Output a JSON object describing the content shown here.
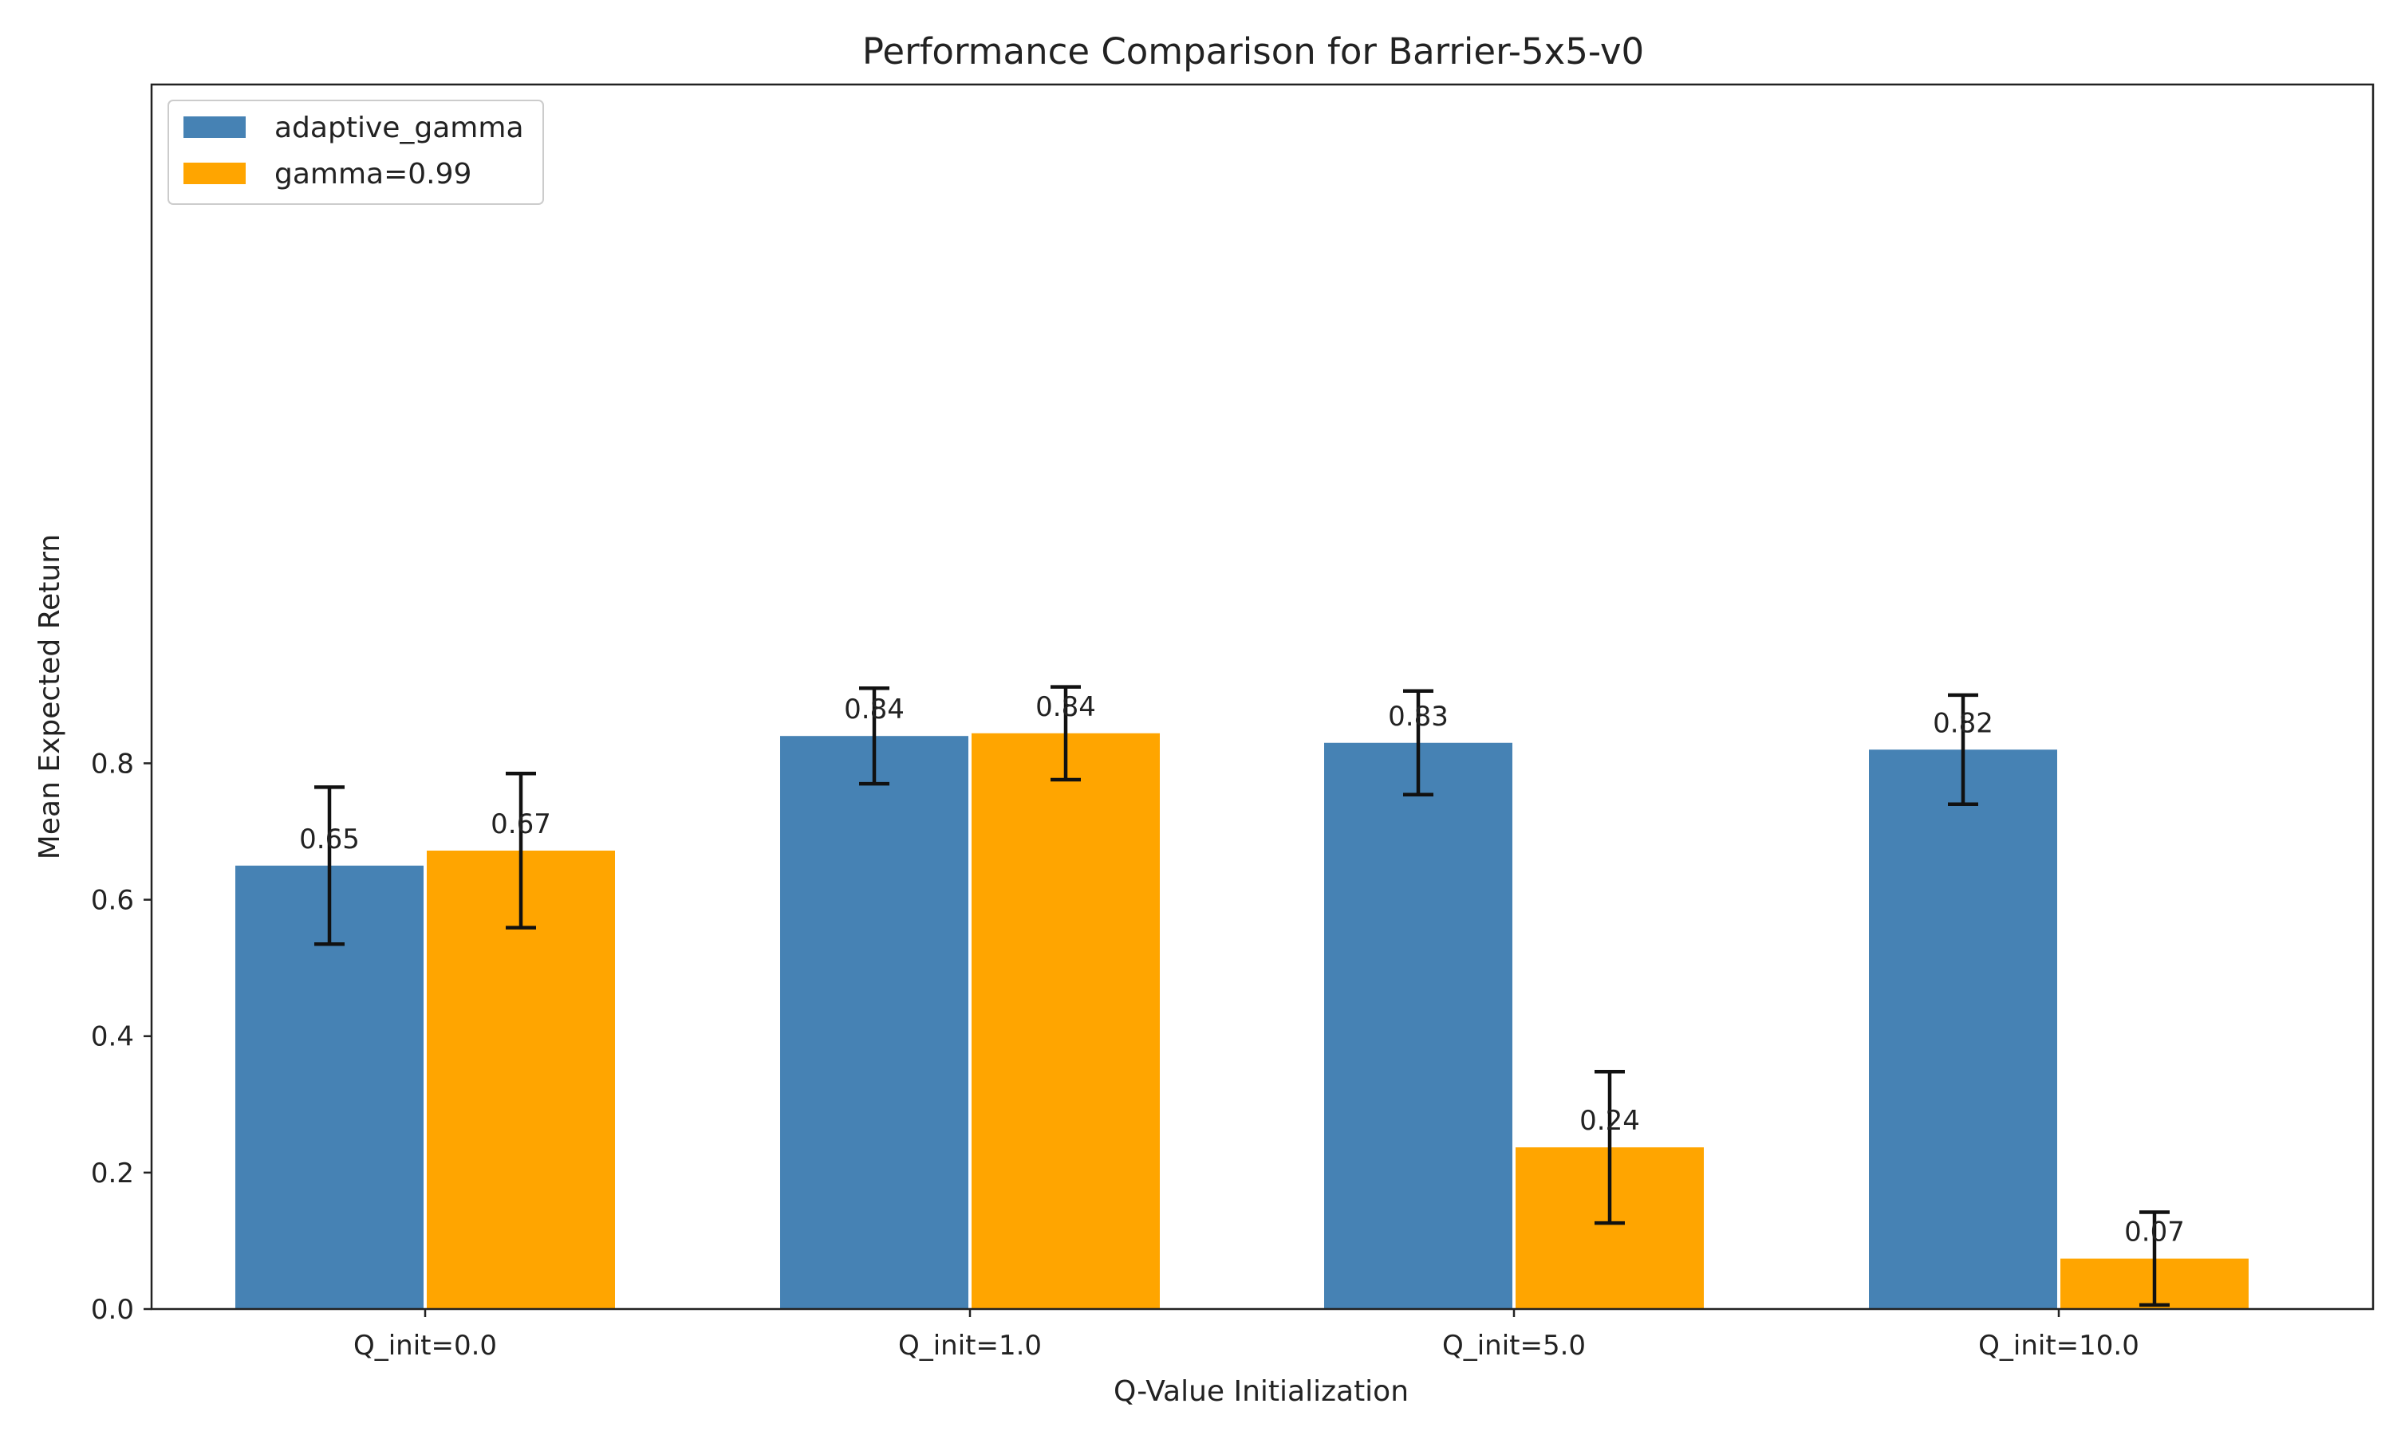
{
  "chart_data": {
    "type": "bar",
    "title": "Performance Comparison for Barrier-5x5-v0",
    "xlabel": "Q-Value Initialization",
    "ylabel": "Mean Expected Return",
    "categories": [
      "Q_init=0.0",
      "Q_init=1.0",
      "Q_init=5.0",
      "Q_init=10.0"
    ],
    "ylim": [
      0,
      0.96
    ],
    "yticks": [
      0.0,
      0.2,
      0.4,
      0.6,
      0.8
    ],
    "ytick_labels": [
      "0.0",
      "0.2",
      "0.4",
      "0.6",
      "0.8"
    ],
    "grid": false,
    "legend_position": "top-left",
    "series": [
      {
        "name": "adaptive_gamma",
        "color": "#4682b4",
        "values": [
          0.65,
          0.84,
          0.83,
          0.82
        ],
        "errors": [
          0.115,
          0.07,
          0.076,
          0.08
        ],
        "labels": [
          "0.65",
          "0.84",
          "0.83",
          "0.82"
        ]
      },
      {
        "name": "gamma=0.99",
        "color": "#ffa500",
        "values": [
          0.672,
          0.844,
          0.237,
          0.074
        ],
        "errors": [
          0.113,
          0.068,
          0.111,
          0.068
        ],
        "labels": [
          "0.67",
          "0.84",
          "0.24",
          "0.07"
        ]
      }
    ]
  }
}
